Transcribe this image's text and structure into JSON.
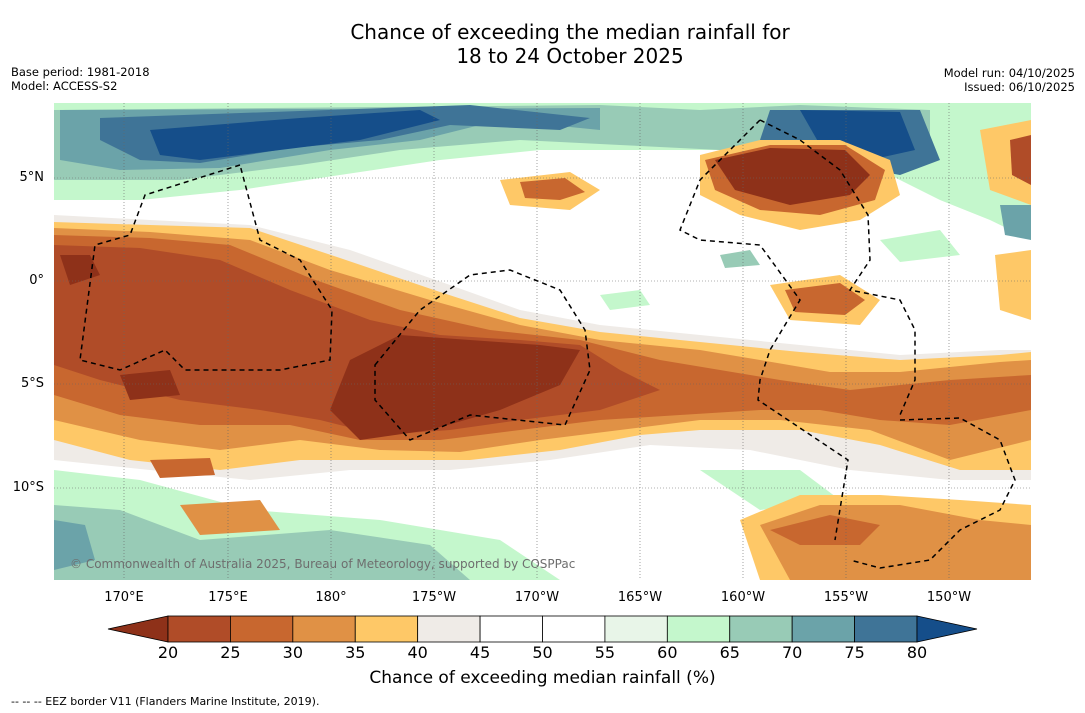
{
  "header": {
    "title_line1": "Chance of exceeding the median rainfall for",
    "title_line2": "18 to 24 October 2025",
    "base_period": "Base period: 1981-2018",
    "model": "Model: ACCESS-S2",
    "model_run": "Model run: 04/10/2025",
    "issued": "Issued: 06/10/2025"
  },
  "map": {
    "lat_labels": [
      "5°N",
      "0°",
      "5°S",
      "10°S"
    ],
    "lon_labels": [
      "170°E",
      "175°E",
      "180°",
      "175°W",
      "170°W",
      "165°W",
      "160°W",
      "155°W",
      "150°W"
    ],
    "credit": "© Commonwealth of Australia 2025, Bureau of Meteorology, supported by COSPPac"
  },
  "colorbar": {
    "ticks": [
      "20",
      "25",
      "30",
      "35",
      "40",
      "45",
      "50",
      "55",
      "60",
      "65",
      "70",
      "75",
      "80"
    ],
    "colors": [
      "#8e3119",
      "#b04c28",
      "#c8672f",
      "#e09145",
      "#fec867",
      "#efebe7",
      "#ffffff",
      "#ffffff",
      "#e8f5e8",
      "#c4f7cc",
      "#98cbb6",
      "#6ba3a9",
      "#3f7497",
      "#154e8a"
    ],
    "title": "Chance of exceeding median rainfall (%)"
  },
  "footer": {
    "eez_note": "--  --  -- EEZ border V11 (Flanders Marine Institute, 2019)."
  }
}
